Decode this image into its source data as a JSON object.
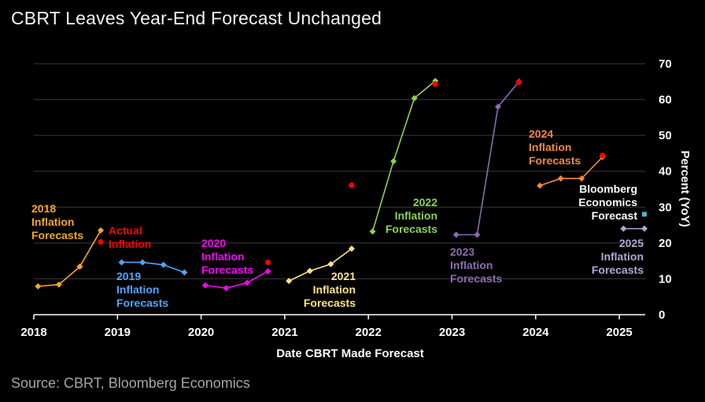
{
  "title": "CBRT Leaves Year-End Forecast Unchanged",
  "source": "Source: CBRT, Bloomberg Economics",
  "chart_data": {
    "type": "line",
    "xlabel": "Date CBRT Made Forecast",
    "ylabel": "Percent (YoY)",
    "xlim": [
      2018,
      2025.3
    ],
    "ylim": [
      0,
      70
    ],
    "x_ticks": [
      "2018",
      "2019",
      "2020",
      "2021",
      "2022",
      "2023",
      "2024",
      "2025"
    ],
    "y_ticks": [
      "0",
      "10",
      "20",
      "30",
      "40",
      "50",
      "60",
      "70"
    ],
    "series": [
      {
        "name": "2018 Inflation Forecasts",
        "color": "#f5a623",
        "label": [
          "2018",
          "Inflation",
          "Forecasts"
        ],
        "x": [
          2018.05,
          2018.3,
          2018.55,
          2018.8
        ],
        "y": [
          7.9,
          8.4,
          13.4,
          23.5
        ]
      },
      {
        "name": "2019 Inflation Forecasts",
        "color": "#4da6ff",
        "label": [
          "2019",
          "Inflation",
          "Forecasts"
        ],
        "x": [
          2019.05,
          2019.3,
          2019.55,
          2019.8
        ],
        "y": [
          14.6,
          14.6,
          13.9,
          11.8
        ]
      },
      {
        "name": "2020 Inflation Forecasts",
        "color": "#ff00ff",
        "label": [
          "2020",
          "Inflation",
          "Forecasts"
        ],
        "x": [
          2020.05,
          2020.3,
          2020.55,
          2020.8
        ],
        "y": [
          8.2,
          7.4,
          8.9,
          12.1
        ]
      },
      {
        "name": "2021 Inflation Forecasts",
        "color": "#ffe680",
        "label": [
          "2021",
          "Inflation",
          "Forecasts"
        ],
        "x": [
          2021.05,
          2021.3,
          2021.55,
          2021.8
        ],
        "y": [
          9.4,
          12.2,
          14.1,
          18.4
        ]
      },
      {
        "name": "2022 Inflation Forecasts",
        "color": "#8fd14f",
        "label": [
          "2022",
          "Inflation",
          "Forecasts"
        ],
        "x": [
          2022.05,
          2022.3,
          2022.55,
          2022.8
        ],
        "y": [
          23.2,
          42.8,
          60.4,
          65.2
        ]
      },
      {
        "name": "2023 Inflation Forecasts",
        "color": "#8c6bb1",
        "label": [
          "2023",
          "Inflation",
          "Forecasts"
        ],
        "x": [
          2023.05,
          2023.3,
          2023.55,
          2023.8
        ],
        "y": [
          22.3,
          22.3,
          58.0,
          65.0
        ]
      },
      {
        "name": "2024 Inflation Forecasts",
        "color": "#f0883e",
        "label": [
          "2024",
          "Inflation",
          "Forecasts"
        ],
        "x": [
          2024.05,
          2024.3,
          2024.55,
          2024.8
        ],
        "y": [
          36.0,
          38.0,
          38.0,
          44.0
        ]
      },
      {
        "name": "2025 Inflation Forecasts",
        "color": "#b3a6d9",
        "label": [
          "2025",
          "Inflation",
          "Forecasts"
        ],
        "x": [
          2025.05,
          2025.3
        ],
        "y": [
          24.0,
          24.0
        ]
      }
    ],
    "actual_inflation": {
      "name": "Actual Inflation",
      "color": "#ff0000",
      "label": [
        "Actual",
        "Inflation"
      ],
      "x": [
        2018.8,
        2020.8,
        2021.8,
        2022.8,
        2023.8,
        2024.8
      ],
      "y": [
        20.3,
        14.6,
        36.1,
        64.3,
        64.8,
        44.4
      ]
    },
    "bloomberg_forecast": {
      "name": "Bloomberg Economics Forecast",
      "color": "#4fb3d9",
      "label": [
        "Bloomberg",
        "Economics",
        "Forecast"
      ],
      "x": [
        2025.3
      ],
      "y": [
        28.0
      ]
    }
  }
}
